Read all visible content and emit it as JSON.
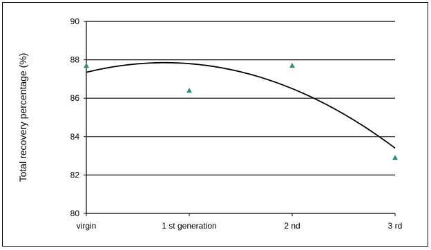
{
  "chart_data": {
    "type": "scatter",
    "title": "",
    "xlabel": "",
    "ylabel": "Total recovery percentage (%)",
    "categories": [
      "virgin",
      "1 st generation",
      "2 nd",
      "3 rd"
    ],
    "ylim": [
      80,
      90
    ],
    "yticks": [
      80,
      82,
      84,
      86,
      88,
      90
    ],
    "grid": "horizontal",
    "legend": "none",
    "series": [
      {
        "marker": "triangle",
        "color": "#2e8a7c",
        "values": [
          87.7,
          86.4,
          87.7,
          82.9
        ]
      }
    ],
    "trendline": {
      "type": "polynomial",
      "color": "#000000",
      "values": [
        87.35,
        87.8,
        86.5,
        83.4
      ]
    }
  }
}
